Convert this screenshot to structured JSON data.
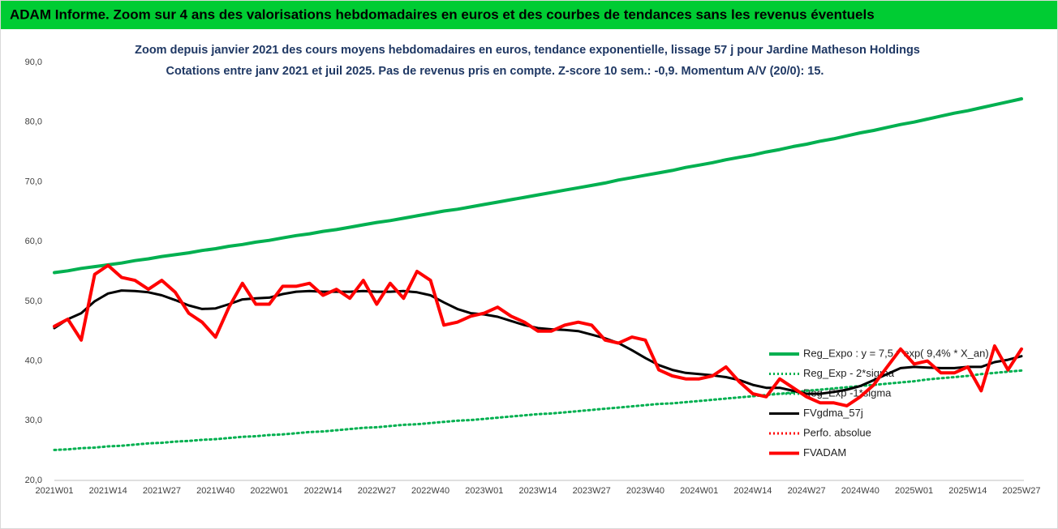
{
  "chart_data": {
    "type": "line",
    "title": "ADAM Informe. Zoom sur 4 ans des valorisations hebdomadaires en euros et des courbes de tendances sans les revenus éventuels",
    "subtitle": [
      "Zoom depuis janvier 2021 des cours moyens hebdomadaires en euros, tendance exponentielle, lissage 57 j pour Jardine Matheson Holdings",
      "Cotations entre janv 2021 et juil 2025. Pas de revenus pris en compte. Z-score 10 sem.: -0,9. Momentum A/V (20/0): 15."
    ],
    "categories": [
      "2021W01",
      null,
      null,
      null,
      "2021W14",
      null,
      null,
      null,
      "2021W27",
      null,
      null,
      null,
      "2021W40",
      null,
      null,
      null,
      "2022W01",
      null,
      null,
      null,
      "2022W14",
      null,
      null,
      null,
      "2022W27",
      null,
      null,
      null,
      "2022W40",
      null,
      null,
      null,
      "2023W01",
      null,
      null,
      null,
      "2023W14",
      null,
      null,
      null,
      "2023W27",
      null,
      null,
      null,
      "2023W40",
      null,
      null,
      null,
      "2024W01",
      null,
      null,
      null,
      "2024W14",
      null,
      null,
      null,
      "2024W27",
      null,
      null,
      null,
      "2024W40",
      null,
      null,
      null,
      "2025W01",
      null,
      null,
      null,
      "2025W14",
      null,
      null,
      null,
      "2025W27"
    ],
    "ylim": [
      20,
      90
    ],
    "yticks": [
      {
        "value": 20,
        "label": "20,0"
      },
      {
        "value": 30,
        "label": "30,0"
      },
      {
        "value": 40,
        "label": "40,0"
      },
      {
        "value": 50,
        "label": "50,0"
      },
      {
        "value": 60,
        "label": "60,0"
      },
      {
        "value": 70,
        "label": "70,0"
      },
      {
        "value": 80,
        "label": "80,0"
      },
      {
        "value": 90,
        "label": "90,0"
      }
    ],
    "grid": false,
    "series": [
      {
        "name": "Reg_Expo : y = 7,5 * exp( 9,4% * X_an)",
        "color": "#00b050",
        "dash": false,
        "width": 4,
        "values": [
          54.8,
          55.1,
          55.5,
          55.8,
          56.1,
          56.4,
          56.8,
          57.1,
          57.5,
          57.8,
          58.1,
          58.5,
          58.8,
          59.2,
          59.5,
          59.9,
          60.2,
          60.6,
          61.0,
          61.3,
          61.7,
          62.0,
          62.4,
          62.8,
          63.2,
          63.5,
          63.9,
          64.3,
          64.7,
          65.1,
          65.4,
          65.8,
          66.2,
          66.6,
          67.0,
          67.4,
          67.8,
          68.2,
          68.6,
          69.0,
          69.4,
          69.8,
          70.3,
          70.7,
          71.1,
          71.5,
          71.9,
          72.4,
          72.8,
          73.2,
          73.7,
          74.1,
          74.5,
          75.0,
          75.4,
          75.9,
          76.3,
          76.8,
          77.2,
          77.7,
          78.2,
          78.6,
          79.1,
          79.6,
          80.0,
          80.5,
          81.0,
          81.5,
          81.9,
          82.4,
          82.9,
          83.4,
          83.9
        ]
      },
      {
        "name": "Reg_Exp - 2*sigma",
        "color": "#00b050",
        "dash": true,
        "width": 3,
        "values": [
          25.1,
          25.2,
          25.4,
          25.5,
          25.7,
          25.8,
          26.0,
          26.2,
          26.3,
          26.5,
          26.6,
          26.8,
          26.9,
          27.1,
          27.3,
          27.4,
          27.6,
          27.7,
          27.9,
          28.1,
          28.2,
          28.4,
          28.6,
          28.8,
          28.9,
          29.1,
          29.3,
          29.4,
          29.6,
          29.8,
          30.0,
          30.1,
          30.3,
          30.5,
          30.7,
          30.9,
          31.1,
          31.2,
          31.4,
          31.6,
          31.8,
          32.0,
          32.2,
          32.4,
          32.6,
          32.8,
          32.9,
          33.1,
          33.3,
          33.5,
          33.7,
          33.9,
          34.1,
          34.3,
          34.5,
          34.7,
          35.0,
          35.2,
          35.4,
          35.6,
          35.8,
          36.0,
          36.2,
          36.4,
          36.6,
          36.9,
          37.1,
          37.3,
          37.5,
          37.8,
          38.0,
          38.2,
          38.4
        ]
      },
      {
        "name": "Reg_Exp -1*sigma",
        "color": "#00b050",
        "dash": true,
        "width": 3
      },
      {
        "name": "FVgdma_57j",
        "color": "#000000",
        "dash": false,
        "width": 3,
        "values": [
          45.5,
          47.0,
          48.0,
          50.0,
          51.3,
          51.8,
          51.7,
          51.5,
          51.0,
          50.2,
          49.3,
          48.7,
          48.8,
          49.5,
          50.3,
          50.5,
          50.6,
          51.2,
          51.6,
          51.7,
          51.6,
          51.6,
          51.6,
          51.7,
          51.6,
          51.6,
          51.7,
          51.5,
          51.0,
          49.8,
          48.7,
          48.0,
          47.8,
          47.4,
          46.7,
          46.0,
          45.5,
          45.3,
          45.2,
          45.0,
          44.4,
          43.8,
          43.0,
          41.8,
          40.5,
          39.3,
          38.5,
          38.0,
          37.8,
          37.6,
          37.3,
          36.8,
          36.0,
          35.5,
          35.5,
          35.0,
          34.5,
          34.5,
          34.8,
          35.2,
          35.8,
          36.8,
          37.8,
          38.8,
          39.0,
          38.9,
          38.8,
          38.8,
          39.0,
          39.0,
          39.8,
          40.2,
          40.8
        ]
      },
      {
        "name": "Perfo. absolue",
        "color": "#ff0000",
        "dash": true,
        "width": 3
      },
      {
        "name": "FVADAM",
        "color": "#ff0000",
        "dash": false,
        "width": 4,
        "values": [
          45.8,
          47.0,
          43.5,
          54.5,
          56.0,
          54.0,
          53.5,
          52.0,
          53.5,
          51.5,
          48.0,
          46.5,
          44.0,
          49.0,
          53.0,
          49.5,
          49.5,
          52.5,
          52.5,
          53.0,
          51.0,
          52.0,
          50.5,
          53.5,
          49.5,
          53.0,
          50.5,
          55.0,
          53.5,
          46.0,
          46.5,
          47.5,
          48.0,
          49.0,
          47.5,
          46.5,
          45.0,
          45.0,
          46.0,
          46.5,
          46.0,
          43.5,
          43.0,
          44.0,
          43.5,
          38.5,
          37.5,
          37.0,
          37.0,
          37.5,
          39.0,
          36.5,
          34.5,
          34.0,
          37.0,
          35.5,
          34.0,
          33.0,
          33.0,
          32.5,
          34.0,
          36.0,
          39.0,
          42.0,
          39.5,
          40.0,
          38.0,
          38.0,
          39.0,
          35.0,
          42.5,
          38.5,
          42.0
        ]
      }
    ]
  }
}
